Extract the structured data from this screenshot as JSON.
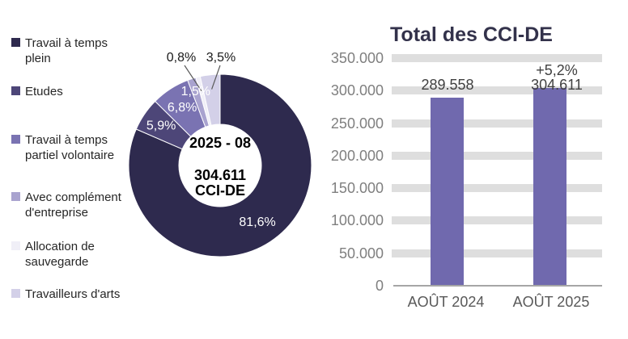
{
  "chart_data": [
    {
      "type": "donut",
      "title": "",
      "period_label": "2025 - 08",
      "total_label": "304.611",
      "unit_label": "CCI-DE",
      "center": [
        "2025 - 08",
        "304.611",
        "CCI-DE"
      ],
      "legend_position": "left",
      "slices": [
        {
          "label": "Travail à temps plein",
          "value": 81.6,
          "display": "81,6%",
          "color": "#2E2A4E"
        },
        {
          "label": "Etudes",
          "value": 5.9,
          "display": "5,9%",
          "color": "#4D4678"
        },
        {
          "label": "Travail à temps partiel volontaire",
          "value": 6.8,
          "display": "6,8%",
          "color": "#7A73B2"
        },
        {
          "label": "Avec complément d'entreprise",
          "value": 1.5,
          "display": "1,5%",
          "color": "#A9A3CF"
        },
        {
          "label": "Allocation de sauvegarde",
          "value": 0.8,
          "display": "0,8%",
          "color": "#F0EFF7"
        },
        {
          "label": "Travailleurs d'arts",
          "value": 3.5,
          "display": "3,5%",
          "color": "#D3D0E8"
        }
      ]
    },
    {
      "type": "bar",
      "title": "Total des CCI-DE",
      "categories": [
        "AOÛT 2024",
        "AOÛT 2025"
      ],
      "values": [
        289558,
        304611
      ],
      "value_labels": [
        "289.558",
        "304.611"
      ],
      "annotations": [
        "",
        "+5,2%"
      ],
      "xlabel": "",
      "ylabel": "",
      "ylim": [
        0,
        350000
      ],
      "yticks": [
        0,
        50000,
        100000,
        150000,
        200000,
        250000,
        300000,
        350000
      ],
      "ytick_labels": [
        "0",
        "50.000",
        "100.000",
        "150.000",
        "200.000",
        "250.000",
        "300.000",
        "350.000"
      ],
      "grid": true,
      "legend": "none",
      "bar_color": "#7069AE",
      "gridline_color": "#DEDEDE"
    }
  ],
  "colors": {
    "background": "#FFFFFF",
    "title_text": "#33324B",
    "axis_tick_text": "#7F7F7F",
    "category_text": "#595959",
    "value_label_text": "#404040",
    "axis_line": "#A6A6A6"
  }
}
